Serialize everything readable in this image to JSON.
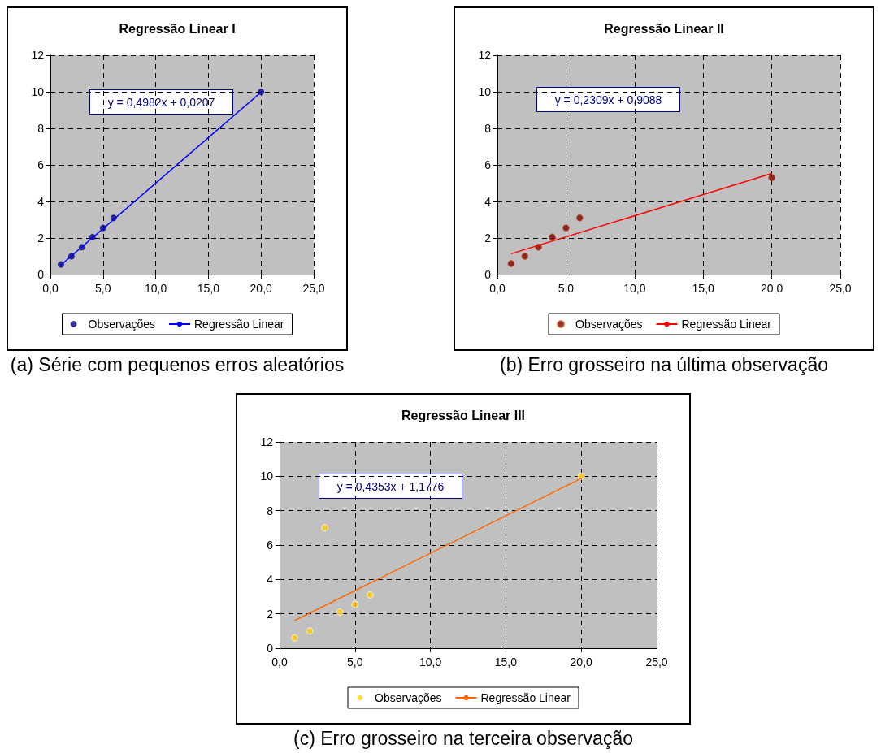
{
  "chart_data": [
    {
      "type": "scatter",
      "title": "Regressão Linear I",
      "marker": "circle",
      "grid": true,
      "legend": "bottom",
      "xlim": [
        0,
        25
      ],
      "xticks": [
        {
          "value": 0,
          "label": "0,0"
        },
        {
          "value": 5,
          "label": "5,0"
        },
        {
          "value": 10,
          "label": "10,0"
        },
        {
          "value": 15,
          "label": "15,0"
        },
        {
          "value": 20,
          "label": "20,0"
        },
        {
          "value": 25,
          "label": "25,0"
        }
      ],
      "ylim": [
        0,
        12
      ],
      "yticks": [
        0,
        2,
        4,
        6,
        8,
        10,
        12
      ],
      "series": [
        {
          "name": "Observações",
          "color": "#000080",
          "x": [
            1,
            2,
            3,
            4,
            5,
            6,
            20
          ],
          "values": [
            0.55,
            1.0,
            1.5,
            2.05,
            2.55,
            3.1,
            10.0
          ]
        },
        {
          "name": "Regressão Linear",
          "type": "line",
          "marker": "none",
          "color": "#0000ff",
          "x": [
            1,
            20
          ],
          "values": [
            0.52,
            9.98
          ]
        }
      ],
      "annotations": [
        "y = 0,4982x + 0,0207",
        "(a) Série com pequenos erros aleatórios"
      ]
    },
    {
      "type": "scatter",
      "title": "Regressão Linear II",
      "marker": "circle",
      "grid": true,
      "legend": "bottom",
      "xlim": [
        0,
        25
      ],
      "xticks": [
        {
          "value": 0,
          "label": "0,0"
        },
        {
          "value": 5,
          "label": "5,0"
        },
        {
          "value": 10,
          "label": "10,0"
        },
        {
          "value": 15,
          "label": "15,0"
        },
        {
          "value": 20,
          "label": "20,0"
        },
        {
          "value": 25,
          "label": "25,0"
        }
      ],
      "ylim": [
        0,
        12
      ],
      "yticks": [
        0,
        2,
        4,
        6,
        8,
        10,
        12
      ],
      "series": [
        {
          "name": "Observações",
          "color": "#800000",
          "x": [
            1,
            2,
            3,
            4,
            5,
            6,
            20
          ],
          "values": [
            0.6,
            1.0,
            1.5,
            2.05,
            2.55,
            3.1,
            5.3
          ]
        },
        {
          "name": "Regressão Linear",
          "type": "line",
          "marker": "none",
          "color": "#ff0000",
          "x": [
            1,
            20
          ],
          "values": [
            1.14,
            5.53
          ]
        }
      ],
      "annotations": [
        "y = 0,2309x + 0,9088",
        "(b) Erro grosseiro na última observação"
      ]
    },
    {
      "type": "scatter",
      "title": "Regressão Linear III",
      "marker": "circle",
      "grid": true,
      "legend": "bottom",
      "xlim": [
        0,
        25
      ],
      "xticks": [
        {
          "value": 0,
          "label": "0,0"
        },
        {
          "value": 5,
          "label": "5,0"
        },
        {
          "value": 10,
          "label": "10,0"
        },
        {
          "value": 15,
          "label": "15,0"
        },
        {
          "value": 20,
          "label": "20,0"
        },
        {
          "value": 25,
          "label": "25,0"
        }
      ],
      "ylim": [
        0,
        12
      ],
      "yticks": [
        0,
        2,
        4,
        6,
        8,
        10,
        12
      ],
      "series": [
        {
          "name": "Observações",
          "color": "#ffcc00",
          "x": [
            1,
            2,
            3,
            4,
            5,
            6,
            20
          ],
          "values": [
            0.6,
            1.0,
            7.0,
            2.1,
            2.55,
            3.1,
            10.0
          ]
        },
        {
          "name": "Regressão Linear",
          "type": "line",
          "marker": "none",
          "color": "#ff6600",
          "x": [
            1,
            20
          ],
          "values": [
            1.61,
            9.88
          ]
        }
      ],
      "annotations": [
        "y = 0,4353x + 1,1776",
        "(c) Erro grosseiro na terceira observação"
      ]
    }
  ]
}
